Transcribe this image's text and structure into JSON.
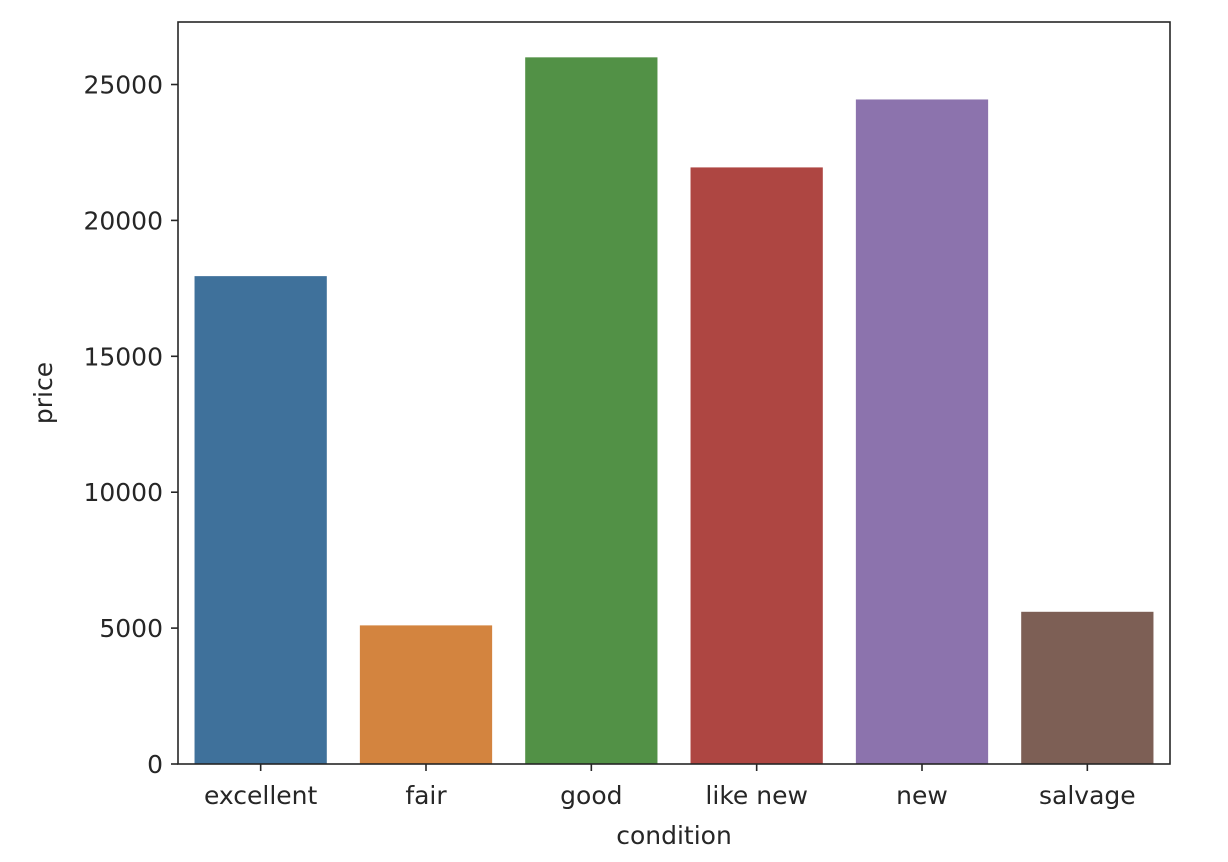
{
  "chart_data": {
    "type": "bar",
    "title": "",
    "xlabel": "condition",
    "ylabel": "price",
    "categories": [
      "excellent",
      "fair",
      "good",
      "like new",
      "new",
      "salvage"
    ],
    "values": [
      17950,
      5100,
      26000,
      21950,
      24450,
      5600
    ],
    "colors": [
      "#3f719b",
      "#d3843f",
      "#529146",
      "#ae4642",
      "#8c73ad",
      "#7d5f55"
    ],
    "ylim": [
      0,
      27300
    ],
    "yticks": [
      0,
      5000,
      10000,
      15000,
      20000,
      25000
    ],
    "ytick_labels": [
      "0",
      "5000",
      "10000",
      "15000",
      "20000",
      "25000"
    ],
    "grid": false,
    "legend": "none"
  }
}
